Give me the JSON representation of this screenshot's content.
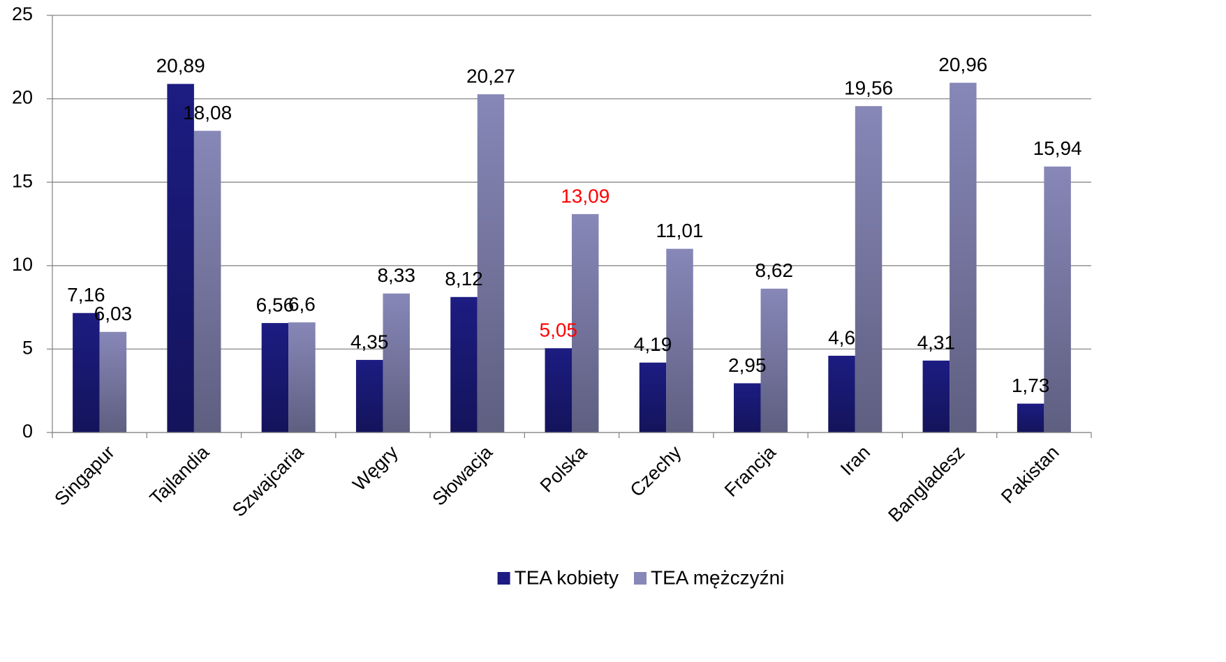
{
  "chart_data": {
    "type": "bar",
    "categories": [
      "Singapur",
      "Tajlandia",
      "Szwajcaria",
      "Węgry",
      "Słowacja",
      "Polska",
      "Czechy",
      "Francja",
      "Iran",
      "Bangladesz",
      "Pakistan"
    ],
    "series": [
      {
        "name": "TEA kobiety",
        "color": "#1c1c82",
        "values": [
          7.16,
          20.89,
          6.56,
          4.35,
          8.12,
          5.05,
          4.19,
          2.95,
          4.6,
          4.31,
          1.73
        ],
        "value_labels": [
          "7,16",
          "20,89",
          "6,56",
          "4,35",
          "8,12",
          "5,05",
          "4,19",
          "2,95",
          "4,6",
          "4,31",
          "1,73"
        ],
        "value_label_colors": [
          "#000000",
          "#000000",
          "#000000",
          "#000000",
          "#000000",
          "#ff0000",
          "#000000",
          "#000000",
          "#000000",
          "#000000",
          "#000000"
        ]
      },
      {
        "name": "TEA mężczyźni",
        "color": "#8787b8",
        "values": [
          6.03,
          18.08,
          6.6,
          8.33,
          20.27,
          13.09,
          11.01,
          8.62,
          19.56,
          20.96,
          15.94
        ],
        "value_labels": [
          "6,03",
          "18,08",
          "6,6",
          "8,33",
          "20,27",
          "13,09",
          "11,01",
          "8,62",
          "19,56",
          "20,96",
          "15,94"
        ],
        "value_label_colors": [
          "#000000",
          "#000000",
          "#000000",
          "#000000",
          "#000000",
          "#ff0000",
          "#000000",
          "#000000",
          "#000000",
          "#000000",
          "#000000"
        ]
      }
    ],
    "ylim": [
      0,
      25
    ],
    "yticks": [
      0,
      5,
      10,
      15,
      20,
      25
    ],
    "grid": true,
    "legend": "bottom"
  }
}
